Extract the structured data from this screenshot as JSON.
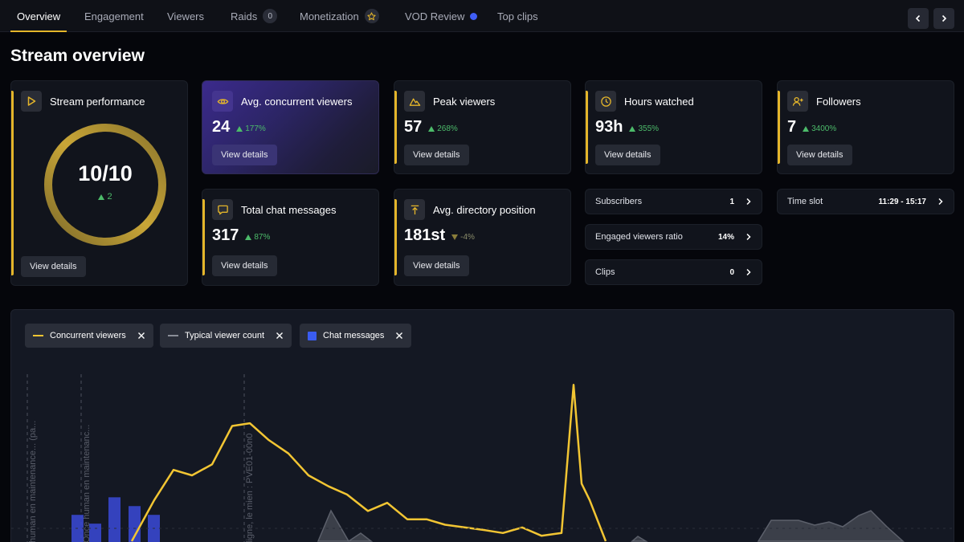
{
  "tabs": [
    {
      "label": "Overview",
      "active": true
    },
    {
      "label": "Engagement"
    },
    {
      "label": "Viewers"
    },
    {
      "label": "Raids",
      "count": "0"
    },
    {
      "label": "Monetization"
    },
    {
      "label": "VOD Review"
    },
    {
      "label": "Top clips"
    }
  ],
  "page_title": "Stream overview",
  "stream_performance": {
    "title": "Stream performance",
    "score": "10/10",
    "score_fraction": 1.0,
    "delta": "2",
    "button": "View details"
  },
  "cards": {
    "avg_concurrent": {
      "title": "Avg. concurrent viewers",
      "value": "24",
      "delta": "177%",
      "button": "View details"
    },
    "peak_viewers": {
      "title": "Peak viewers",
      "value": "57",
      "delta": "268%",
      "button": "View details"
    },
    "hours_watched": {
      "title": "Hours watched",
      "value": "93h",
      "delta": "355%",
      "button": "View details"
    },
    "followers": {
      "title": "Followers",
      "value": "7",
      "delta": "3400%",
      "button": "View details"
    },
    "total_chat": {
      "title": "Total chat messages",
      "value": "317",
      "delta": "87%",
      "button": "View details"
    },
    "directory_position": {
      "title": "Avg. directory position",
      "value": "181st",
      "delta": "-4%",
      "button": "View details"
    }
  },
  "rows": {
    "subscribers": {
      "label": "Subscribers",
      "value": "1"
    },
    "engaged_ratio": {
      "label": "Engaged viewers ratio",
      "value": "14%"
    },
    "clips": {
      "label": "Clips",
      "value": "0"
    },
    "time_slot": {
      "label": "Time slot",
      "value": "11:29 - 15:17"
    }
  },
  "chips": [
    {
      "label": "Concurrent viewers",
      "color": "#f2c533"
    },
    {
      "label": "Typical viewer count",
      "color": "#8a8e98"
    },
    {
      "label": "Chat messages",
      "color": "#3a5cf0"
    }
  ],
  "chart_data": {
    "type": "line",
    "series": [
      {
        "name": "Concurrent viewers",
        "color": "#f2c533",
        "values": [
          null,
          null,
          null,
          null,
          null,
          null,
          0,
          15,
          26,
          24,
          28,
          42,
          43,
          37,
          32,
          24,
          20,
          17,
          11,
          14,
          8,
          8,
          6,
          5,
          4,
          3,
          5,
          2,
          3,
          57,
          21,
          15,
          0
        ]
      },
      {
        "name": "Typical viewer count",
        "color": "#8a8e98",
        "values": [
          null,
          null,
          null,
          null,
          null,
          null,
          null,
          null,
          null,
          null,
          null,
          null,
          null,
          null,
          null,
          null,
          4,
          0,
          3,
          0,
          null,
          null,
          null,
          null,
          null,
          null,
          null,
          null,
          null,
          null,
          null,
          null,
          null,
          null,
          null,
          null,
          null,
          null,
          null,
          1,
          null,
          null,
          null,
          null,
          null,
          null,
          null,
          null,
          null,
          null,
          null,
          null,
          null,
          null,
          null,
          null,
          null,
          null,
          null,
          null,
          null,
          null,
          null,
          null,
          null,
          null,
          null,
          null,
          null,
          null,
          null,
          null,
          null,
          null,
          null,
          null,
          null,
          null,
          null,
          null,
          null,
          null,
          null,
          null,
          null,
          null,
          null,
          null,
          null,
          null,
          null,
          null,
          null,
          null,
          null,
          null,
          null,
          null,
          null
        ]
      },
      {
        "name": "Chat messages",
        "color": "#3a5cf0",
        "values": [
          3,
          2,
          5,
          4,
          3
        ]
      }
    ],
    "annotations": [
      "human en maintenance... (pa...",
      "Once human en maintenanc...",
      "ligne, le mien : PVE01-00n0"
    ],
    "ylim": [
      0,
      60
    ],
    "grid": false,
    "legend": "top-left"
  }
}
